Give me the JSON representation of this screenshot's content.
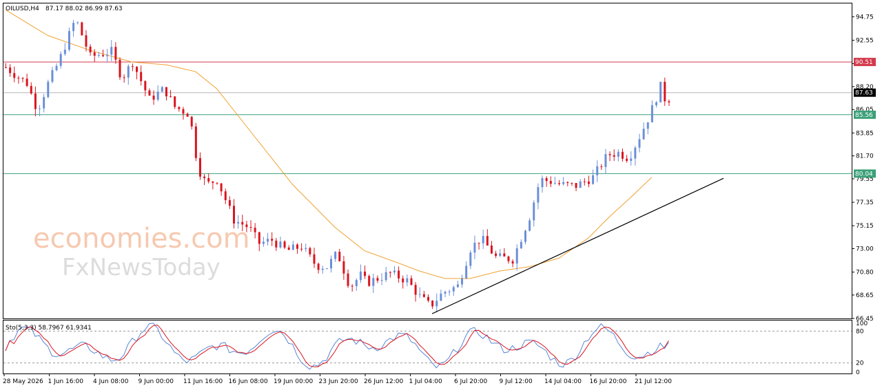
{
  "header": {
    "symbol": "OILUSD,H4",
    "ohlc": "87.17 88.02 86.99 87.63"
  },
  "watermark": {
    "brand1": "economies.com",
    "brand2": "FxNewsToday"
  },
  "colors": {
    "bull": "#6a8fd8",
    "bear": "#d9141e",
    "ma": "#f0a030",
    "resistance": "#d23a4c",
    "support": "#3aa078",
    "trendline": "#000000",
    "stoch_main": "#5a86d6",
    "stoch_signal": "#d9141e"
  },
  "chart_data": {
    "type": "candlestick",
    "symbol": "OILUSD",
    "timeframe": "H4",
    "ylim": [
      66.45,
      96.0
    ],
    "y_ticks": [
      "94.75",
      "92.55",
      "90.35",
      "88.20",
      "86.05",
      "83.85",
      "81.70",
      "79.55",
      "77.35",
      "75.15",
      "73.00",
      "70.80",
      "68.65",
      "66.45"
    ],
    "x_ticks": [
      "28 May 2026",
      "1 Jun 16:00",
      "4 Jun 08:00",
      "9 Jun 00:00",
      "11 Jun 16:00",
      "16 Jun 08:00",
      "19 Jun 00:00",
      "23 Jun 20:00",
      "26 Jun 12:00",
      "1 Jul 04:00",
      "6 Jul 20:00",
      "9 Jul 12:00",
      "14 Jul 04:00",
      "16 Jul 20:00",
      "21 Jul 12:00"
    ],
    "bars": 154,
    "path": [
      [
        0,
        90.0
      ],
      [
        10,
        88.5
      ],
      [
        15,
        86.0
      ],
      [
        20,
        88.5
      ],
      [
        25,
        90.5
      ],
      [
        33,
        94.6
      ],
      [
        40,
        91.0
      ],
      [
        50,
        91.5
      ],
      [
        55,
        89.0
      ],
      [
        60,
        90.5
      ],
      [
        68,
        87.0
      ],
      [
        75,
        88.0
      ],
      [
        80,
        86.3
      ],
      [
        87,
        85.6
      ],
      [
        91,
        80.6
      ],
      [
        95,
        79.0
      ],
      [
        100,
        79.5
      ],
      [
        108,
        75.7
      ],
      [
        115,
        75.0
      ],
      [
        120,
        73.5
      ],
      [
        126,
        73.8
      ],
      [
        133,
        72.8
      ],
      [
        140,
        73.2
      ],
      [
        147,
        71.4
      ],
      [
        152,
        71.3
      ],
      [
        157,
        72.6
      ],
      [
        163,
        69.4
      ],
      [
        168,
        70.5
      ],
      [
        171,
        69.8
      ],
      [
        176,
        70.2
      ],
      [
        182,
        70.7
      ],
      [
        190,
        70.0
      ],
      [
        196,
        68.5
      ],
      [
        201,
        67.6
      ],
      [
        207,
        68.9
      ],
      [
        214,
        69.5
      ],
      [
        220,
        73.0
      ],
      [
        225,
        74.0
      ],
      [
        232,
        72.2
      ],
      [
        240,
        72.0
      ],
      [
        248,
        76.0
      ],
      [
        253,
        79.5
      ],
      [
        258,
        79.3
      ],
      [
        263,
        79.0
      ],
      [
        270,
        78.9
      ],
      [
        278,
        79.7
      ],
      [
        285,
        81.8
      ],
      [
        290,
        82.0
      ],
      [
        295,
        81.5
      ],
      [
        300,
        83.5
      ],
      [
        305,
        85.6
      ],
      [
        310,
        88.2
      ],
      [
        313,
        86.5
      ],
      [
        315,
        87.63
      ]
    ],
    "resistance_levels": [
      {
        "value": 90.51,
        "label": "90.51"
      }
    ],
    "support_levels": [
      {
        "value": 85.56,
        "label": "85.56"
      },
      {
        "value": 80.04,
        "label": "80.04"
      }
    ],
    "current_price": {
      "value": 87.63,
      "label": "87.63"
    },
    "trendline": {
      "from": {
        "bar": 101,
        "price": 66.9
      },
      "to": {
        "bar": 170,
        "price": 79.6
      }
    },
    "moving_average": [
      [
        0,
        95.4
      ],
      [
        10,
        93.0
      ],
      [
        20,
        91.6
      ],
      [
        30,
        90.5
      ],
      [
        38,
        90.25
      ],
      [
        45,
        89.6
      ],
      [
        50,
        88.0
      ],
      [
        58,
        84.0
      ],
      [
        68,
        79.0
      ],
      [
        78,
        75.0
      ],
      [
        85,
        72.8
      ],
      [
        92,
        71.8
      ],
      [
        98,
        70.9
      ],
      [
        104,
        70.2
      ],
      [
        110,
        70.2
      ],
      [
        117,
        70.9
      ],
      [
        124,
        71.3
      ],
      [
        131,
        72.1
      ],
      [
        138,
        74.0
      ],
      [
        143,
        76.0
      ],
      [
        148,
        77.8
      ],
      [
        153,
        79.7
      ]
    ],
    "stochastic": {
      "label": "Sto(5,3,3) 58.7967 61.9341",
      "main": 58.7967,
      "signal": 61.9341,
      "levels": [
        80,
        20
      ],
      "y_ticks": [
        "100",
        "80",
        "20",
        "0"
      ],
      "ylim": [
        0,
        100
      ]
    }
  }
}
